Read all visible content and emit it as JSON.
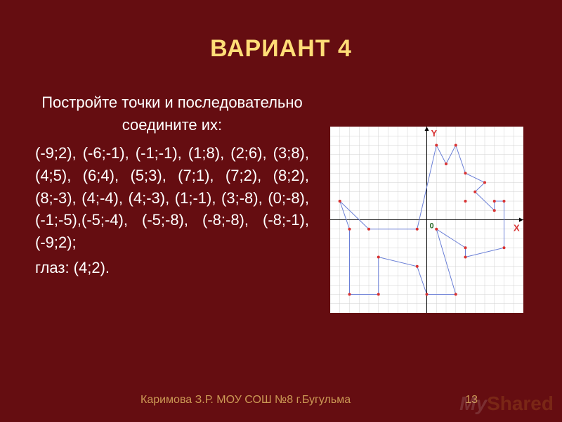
{
  "title": "ВАРИАНТ 4",
  "intro": "Постройте точки и последовательно соедините их:",
  "coords_text": "(-9;2), (-6;-1), (-1;-1), (1;8), (2;6), (3;8), (4;5), (6;4), (5;3), (7;1), (7;2), (8;2), (8;-3), (4;-4), (4;-3), (1;-1), (3;-8), (0;-8), (-1;-5),(-5;-4), (-5;-8), (-8;-8), (-8;-1), (-9;2);",
  "eye_label": "глаз: (4;2).",
  "footer_credit": "Каримова З.Р. МОУ СОШ №8 г.Бугульма",
  "footer_page": "13",
  "watermark_a": "My",
  "watermark_b": "Shared",
  "chart": {
    "type": "line",
    "background_color": "#ffffff",
    "grid_color": "#d0d0d0",
    "axis_color": "#000000",
    "line_color": "#6a7fd6",
    "point_color": "#d83232",
    "x_label": "X",
    "y_label": "Y",
    "x_label_color": "#d83232",
    "y_label_color": "#d83232",
    "origin_label": "0",
    "origin_color": "#2a6a2a",
    "xlim": [
      -10,
      10
    ],
    "ylim": [
      -10,
      10
    ],
    "tick_step": 1,
    "line_width": 1,
    "point_radius": 2,
    "polyline": [
      [
        -9,
        2
      ],
      [
        -6,
        -1
      ],
      [
        -1,
        -1
      ],
      [
        1,
        8
      ],
      [
        2,
        6
      ],
      [
        3,
        8
      ],
      [
        4,
        5
      ],
      [
        6,
        4
      ],
      [
        5,
        3
      ],
      [
        7,
        1
      ],
      [
        7,
        2
      ],
      [
        8,
        2
      ],
      [
        8,
        -3
      ],
      [
        4,
        -4
      ],
      [
        4,
        -3
      ],
      [
        1,
        -1
      ],
      [
        3,
        -8
      ],
      [
        0,
        -8
      ],
      [
        -1,
        -5
      ],
      [
        -5,
        -4
      ],
      [
        -5,
        -8
      ],
      [
        -8,
        -8
      ],
      [
        -8,
        -1
      ],
      [
        -9,
        2
      ]
    ],
    "extra_points": [
      [
        4,
        2
      ]
    ]
  }
}
